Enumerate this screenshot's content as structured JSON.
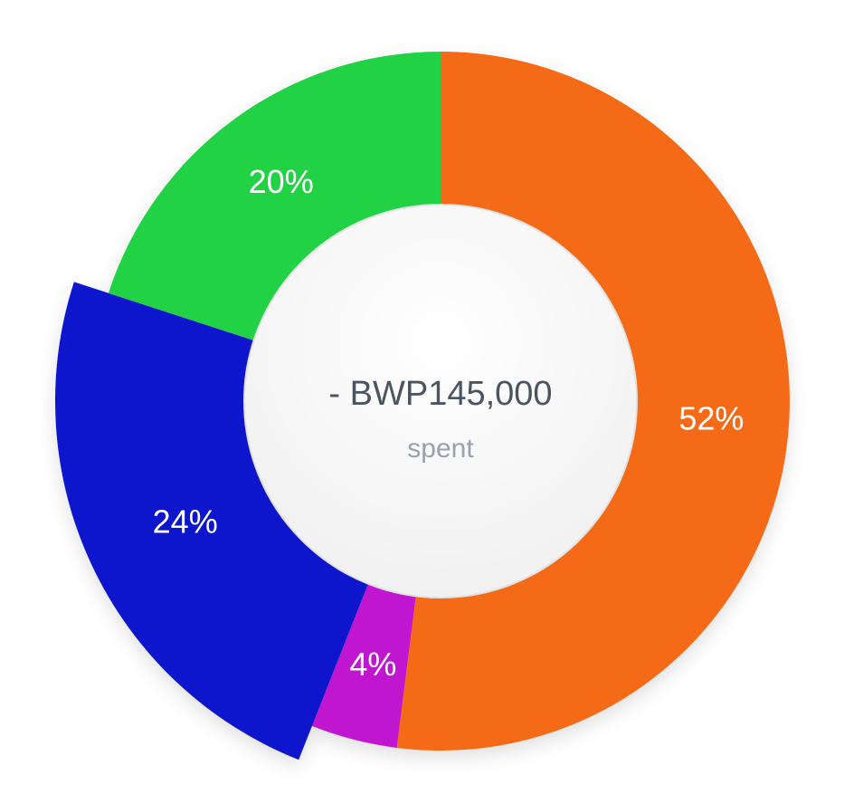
{
  "chart_data": {
    "type": "pie",
    "variant": "donut",
    "slices": [
      {
        "label": "52%",
        "value": 52,
        "color": "#f56a12",
        "exploded": false
      },
      {
        "label": "4%",
        "value": 4,
        "color": "#c117cf",
        "exploded": false
      },
      {
        "label": "24%",
        "value": 24,
        "color": "#1118cc",
        "exploded": true
      },
      {
        "label": "20%",
        "value": 20,
        "color": "#24d245",
        "exploded": false
      }
    ],
    "start": "top",
    "direction": "clockwise",
    "center_amount": "- BWP145,000",
    "center_caption": "spent"
  }
}
